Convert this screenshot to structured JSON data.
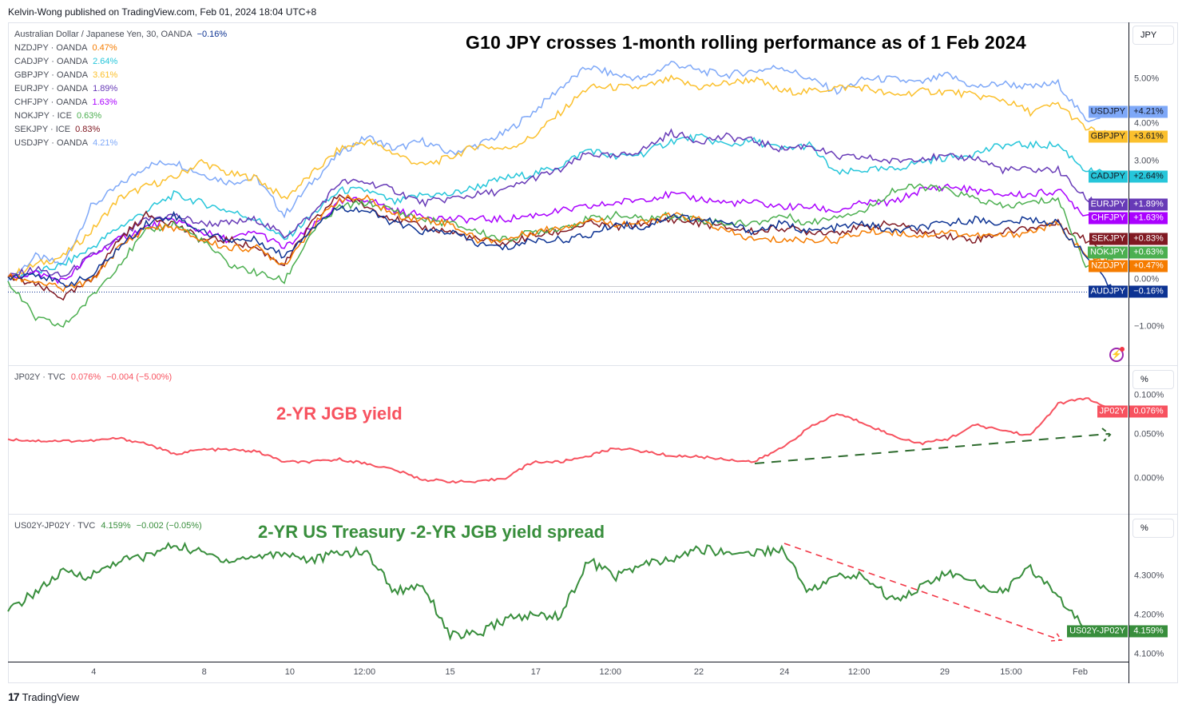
{
  "publisher_line": "Kelvin-Wong published on TradingView.com, Feb 01, 2024 18:04 UTC+8",
  "headline": "G10 JPY crosses 1-month rolling performance as of 1 Feb 2024",
  "main_legend": {
    "title": "Australian Dollar / Japanese Yen, 30, OANDA",
    "title_value": "−0.16%",
    "rows": [
      {
        "label": "NZDJPY · OANDA",
        "value": "0.47%",
        "color": "#f57c00"
      },
      {
        "label": "CADJPY · OANDA",
        "value": "2.64%",
        "color": "#26c6da"
      },
      {
        "label": "GBPJPY · OANDA",
        "value": "3.61%",
        "color": "#fbc02d"
      },
      {
        "label": "EURJPY · OANDA",
        "value": "1.89%",
        "color": "#673ab7"
      },
      {
        "label": "CHFJPY · OANDA",
        "value": "1.63%",
        "color": "#aa00ff"
      },
      {
        "label": "NOKJPY · ICE",
        "value": "0.63%",
        "color": "#4caf50"
      },
      {
        "label": "SEKJPY · ICE",
        "value": "0.83%",
        "color": "#801922"
      },
      {
        "label": "USDJPY · OANDA",
        "value": "4.21%",
        "color": "#7ea8f8"
      }
    ]
  },
  "pane2_legend": {
    "label": "JP02Y · TVC",
    "value": "0.076%",
    "change": "−0.004 (−5.00%)"
  },
  "pane3_legend": {
    "label": "US02Y-JP02Y · TVC",
    "value": "4.159%",
    "change": "−0.002 (−0.05%)"
  },
  "annotations": {
    "jgb": "2-YR JGB yield",
    "spread": "2-YR US Treasury -2-YR JGB yield spread"
  },
  "axis_buttons": {
    "main": "JPY",
    "pane2": "%",
    "pane3": "%"
  },
  "footer": {
    "logo": "17",
    "brand": "TradingView"
  },
  "chart_data": [
    {
      "type": "line",
      "title": "G10 JPY crosses 1-month rolling performance (%)",
      "ylabel": "JPY %",
      "ylim": [
        -1.5,
        6.0
      ],
      "yticks": [
        {
          "v": 5,
          "label": "5.00%"
        },
        {
          "v": 4,
          "label": "4.00%"
        },
        {
          "v": 3,
          "label": "3.00%"
        },
        {
          "v": 0,
          "label": "0.00%"
        },
        {
          "v": -1,
          "label": "−1.00%"
        }
      ],
      "x_index_range": [
        0,
        40
      ],
      "xticks": [
        {
          "x": 3.1,
          "label": "4"
        },
        {
          "x": 7.1,
          "label": "8"
        },
        {
          "x": 10.2,
          "label": "10"
        },
        {
          "x": 12.9,
          "label": "12:00"
        },
        {
          "x": 16.0,
          "label": "15"
        },
        {
          "x": 19.1,
          "label": "17"
        },
        {
          "x": 21.8,
          "label": "12:00"
        },
        {
          "x": 25.0,
          "label": "22"
        },
        {
          "x": 28.1,
          "label": "24"
        },
        {
          "x": 30.8,
          "label": "12:00"
        },
        {
          "x": 33.9,
          "label": "29"
        },
        {
          "x": 36.3,
          "label": "15:00"
        },
        {
          "x": 38.8,
          "label": "Feb"
        }
      ],
      "series": [
        {
          "name": "USDJPY",
          "color": "#7ea8f8",
          "last": "+4.21%",
          "values": [
            0.1,
            0.7,
            0.5,
            1.9,
            2.4,
            2.9,
            3.0,
            2.7,
            2.5,
            2.6,
            1.7,
            2.5,
            3.2,
            3.6,
            3.3,
            3.5,
            3.2,
            3.4,
            3.7,
            4.2,
            4.8,
            5.3,
            5.1,
            5.0,
            5.4,
            5.2,
            5.1,
            5.2,
            5.3,
            5.0,
            4.7,
            5.0,
            5.0,
            4.9,
            5.1,
            4.8,
            4.9,
            4.8,
            4.9,
            4.0,
            4.21
          ]
        },
        {
          "name": "GBPJPY",
          "color": "#fbc02d",
          "last": "+3.61%",
          "values": [
            0.2,
            0.5,
            0.7,
            1.3,
            2.1,
            2.4,
            2.6,
            3.0,
            2.7,
            2.6,
            2.1,
            2.7,
            3.3,
            3.5,
            3.2,
            2.9,
            3.1,
            3.4,
            3.3,
            3.6,
            4.2,
            4.8,
            4.8,
            4.8,
            5.0,
            4.8,
            4.9,
            5.0,
            4.7,
            4.7,
            4.8,
            4.8,
            4.6,
            4.7,
            4.7,
            4.6,
            4.5,
            4.2,
            4.4,
            3.8,
            3.61
          ]
        },
        {
          "name": "CADJPY",
          "color": "#26c6da",
          "last": "+2.64%",
          "values": [
            0.2,
            0.3,
            0.5,
            0.9,
            1.4,
            1.8,
            2.2,
            2.0,
            1.8,
            1.6,
            1.1,
            1.7,
            2.3,
            2.3,
            2.0,
            2.2,
            2.2,
            2.4,
            2.6,
            2.7,
            2.9,
            3.3,
            3.1,
            3.2,
            3.5,
            3.6,
            3.4,
            3.5,
            3.3,
            3.4,
            2.7,
            2.8,
            2.8,
            3.0,
            3.1,
            3.2,
            3.4,
            3.4,
            3.4,
            2.8,
            2.64
          ]
        },
        {
          "name": "EURJPY",
          "color": "#673ab7",
          "last": "+1.89%",
          "values": [
            0.2,
            0.4,
            0.2,
            0.7,
            1.1,
            1.6,
            1.7,
            1.5,
            1.5,
            1.6,
            1.2,
            1.7,
            2.5,
            2.5,
            2.3,
            2.0,
            2.1,
            2.2,
            2.3,
            2.6,
            2.8,
            3.2,
            3.1,
            3.3,
            3.7,
            3.5,
            3.6,
            3.5,
            3.3,
            3.4,
            3.1,
            3.1,
            3.0,
            3.1,
            3.1,
            3.1,
            2.8,
            2.8,
            2.8,
            2.1,
            1.89
          ]
        },
        {
          "name": "CHFJPY",
          "color": "#aa00ff",
          "last": "+1.63%",
          "values": [
            0.2,
            0.3,
            0.1,
            0.7,
            1.1,
            1.4,
            1.6,
            1.3,
            1.1,
            1.3,
            0.9,
            1.4,
            2.0,
            2.1,
            1.8,
            1.7,
            1.6,
            1.6,
            1.6,
            1.7,
            1.8,
            1.9,
            2.0,
            2.1,
            2.2,
            2.1,
            2.0,
            2.0,
            1.9,
            1.9,
            1.8,
            2.0,
            2.0,
            2.3,
            2.4,
            2.3,
            2.2,
            2.2,
            2.3,
            1.7,
            1.63
          ]
        },
        {
          "name": "SEKJPY",
          "color": "#801922",
          "last": "+0.83%",
          "values": [
            0.2,
            0.0,
            -0.3,
            0.1,
            1.1,
            1.7,
            1.5,
            1.1,
            1.1,
            0.9,
            0.5,
            1.5,
            2.2,
            1.9,
            1.6,
            1.4,
            1.3,
            1.1,
            1.0,
            1.2,
            1.3,
            1.5,
            1.4,
            1.5,
            1.6,
            1.5,
            1.4,
            1.3,
            1.4,
            1.3,
            1.3,
            1.4,
            1.5,
            1.3,
            1.2,
            1.1,
            1.3,
            1.4,
            1.5,
            1.1,
            0.83
          ]
        },
        {
          "name": "NOKJPY",
          "color": "#4caf50",
          "last": "+0.63%",
          "values": [
            0.1,
            -0.8,
            -1.0,
            -0.3,
            0.5,
            1.3,
            1.5,
            1.1,
            0.5,
            0.3,
            0.1,
            1.3,
            1.9,
            2.0,
            1.8,
            1.6,
            1.5,
            1.3,
            1.1,
            1.3,
            1.4,
            1.6,
            1.7,
            1.6,
            1.7,
            1.6,
            1.5,
            1.5,
            1.7,
            1.5,
            1.7,
            1.8,
            2.3,
            2.4,
            2.3,
            2.1,
            1.9,
            2.0,
            2.1,
            0.5,
            0.63
          ]
        },
        {
          "name": "NZDJPY",
          "color": "#f57c00",
          "last": "+0.47%",
          "values": [
            0.2,
            0.1,
            -0.1,
            0.1,
            0.9,
            1.4,
            1.4,
            1.1,
            0.9,
            0.9,
            0.5,
            1.4,
            2.1,
            2.1,
            1.7,
            1.6,
            1.5,
            1.1,
            1.1,
            1.3,
            1.4,
            1.6,
            1.5,
            1.5,
            1.7,
            1.6,
            1.3,
            1.1,
            1.1,
            1.1,
            1.1,
            1.3,
            1.3,
            1.2,
            1.3,
            1.2,
            1.2,
            1.3,
            1.5,
            0.7,
            0.47
          ]
        },
        {
          "name": "AUDJPY",
          "color": "#0d3393",
          "last": "−0.16%",
          "values": [
            0.2,
            0.3,
            0.0,
            0.2,
            0.9,
            1.5,
            1.7,
            1.3,
            1.1,
            1.1,
            0.7,
            1.4,
            1.9,
            1.8,
            1.5,
            1.3,
            1.3,
            1.0,
            0.9,
            1.1,
            1.1,
            1.2,
            1.5,
            1.4,
            1.7,
            1.6,
            1.5,
            1.3,
            1.5,
            1.3,
            1.4,
            1.5,
            1.3,
            1.4,
            1.5,
            1.6,
            1.5,
            1.6,
            1.5,
            0.7,
            -0.16
          ]
        }
      ]
    },
    {
      "type": "line",
      "title": "2-YR JGB yield",
      "ylim": [
        -0.02,
        0.14
      ],
      "yticks": [
        {
          "v": 0.1,
          "label": "0.100%"
        },
        {
          "v": 0.05,
          "label": "0.050%"
        },
        {
          "v": 0,
          "label": "0.000%"
        }
      ],
      "series": [
        {
          "name": "JP02Y",
          "color": "#f7525f",
          "last": "0.076%",
          "values": [
            0.045,
            0.043,
            0.043,
            0.043,
            0.046,
            0.04,
            0.028,
            0.033,
            0.033,
            0.031,
            0.019,
            0.019,
            0.022,
            0.017,
            0.01,
            -0.001,
            -0.003,
            -0.004,
            0.001,
            0.019,
            0.019,
            0.026,
            0.035,
            0.031,
            0.026,
            0.025,
            0.022,
            0.019,
            0.035,
            0.058,
            0.074,
            0.063,
            0.049,
            0.04,
            0.045,
            0.061,
            0.055,
            0.049,
            0.085,
            0.092,
            0.076
          ]
        }
      ]
    },
    {
      "type": "line",
      "title": "2-YR US Treasury - 2-YR JGB yield spread",
      "ylim": [
        4.08,
        4.45
      ],
      "yticks": [
        {
          "v": 4.3,
          "label": "4.300%"
        },
        {
          "v": 4.2,
          "label": "4.200%"
        },
        {
          "v": 4.1,
          "label": "4.100%"
        }
      ],
      "series": [
        {
          "name": "US02Y-JP02Y",
          "color": "#388e3c",
          "last": "4.159%",
          "values": [
            4.21,
            4.26,
            4.31,
            4.3,
            4.34,
            4.35,
            4.38,
            4.36,
            4.34,
            4.35,
            4.36,
            4.34,
            4.36,
            4.36,
            4.26,
            4.28,
            4.15,
            4.15,
            4.19,
            4.2,
            4.2,
            4.34,
            4.3,
            4.33,
            4.34,
            4.37,
            4.36,
            4.36,
            4.37,
            4.26,
            4.3,
            4.3,
            4.24,
            4.27,
            4.31,
            4.28,
            4.26,
            4.32,
            4.25,
            4.16,
            4.159
          ]
        }
      ]
    }
  ]
}
